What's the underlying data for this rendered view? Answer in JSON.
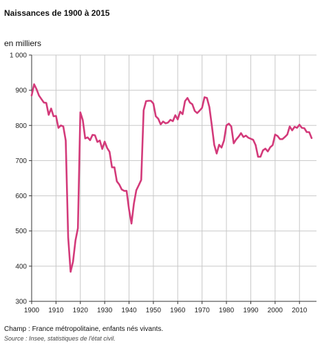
{
  "header": {
    "title": "Naissances de 1900 à 2015",
    "unit": "en milliers"
  },
  "footer": {
    "note": "Champ : France métropolitaine, enfants nés vivants.",
    "source": "Source : Insee, statistiques de l'état civil."
  },
  "colors": {
    "line": "#d33a7a",
    "grid": "#c8c8c8",
    "axis": "#333333"
  },
  "chart_data": {
    "type": "line",
    "title": "Naissances de 1900 à 2015",
    "xlabel": "",
    "ylabel": "en milliers",
    "xlim": [
      1900,
      2017
    ],
    "ylim": [
      300,
      1000
    ],
    "grid": true,
    "x_ticks": [
      1900,
      1910,
      1920,
      1930,
      1940,
      1950,
      1960,
      1970,
      1980,
      1990,
      2000,
      2010
    ],
    "y_ticks": [
      300,
      400,
      500,
      600,
      700,
      800,
      900,
      1000
    ],
    "y_tick_labels": [
      "300",
      "400",
      "500",
      "600",
      "700",
      "800",
      "900",
      "1 000"
    ],
    "series": [
      {
        "x": [
          1900,
          1901,
          1902,
          1903,
          1904,
          1905,
          1906,
          1907,
          1908,
          1909,
          1910,
          1911,
          1912,
          1913,
          1914,
          1915,
          1916,
          1917,
          1918,
          1919,
          1920,
          1921,
          1922,
          1923,
          1924,
          1925,
          1926,
          1927,
          1928,
          1929,
          1930,
          1931,
          1932,
          1933,
          1934,
          1935,
          1936,
          1937,
          1938,
          1939,
          1940,
          1941,
          1942,
          1943,
          1944,
          1945,
          1946,
          1947,
          1948,
          1949,
          1950,
          1951,
          1952,
          1953,
          1954,
          1955,
          1956,
          1957,
          1958,
          1959,
          1960,
          1961,
          1962,
          1963,
          1964,
          1965,
          1966,
          1967,
          1968,
          1969,
          1970,
          1971,
          1972,
          1973,
          1974,
          1975,
          1976,
          1977,
          1978,
          1979,
          1980,
          1981,
          1982,
          1983,
          1984,
          1985,
          1986,
          1987,
          1988,
          1989,
          1990,
          1991,
          1992,
          1993,
          1994,
          1995,
          1996,
          1997,
          1998,
          1999,
          2000,
          2001,
          2002,
          2003,
          2004,
          2005,
          2006,
          2007,
          2008,
          2009,
          2010,
          2011,
          2012,
          2013,
          2014,
          2015
        ],
        "values": [
          885,
          917,
          903,
          885,
          875,
          865,
          864,
          830,
          848,
          826,
          827,
          793,
          800,
          797,
          757,
          482,
          384,
          413,
          473,
          508,
          837,
          815,
          763,
          766,
          758,
          773,
          772,
          753,
          757,
          733,
          754,
          736,
          725,
          681,
          681,
          641,
          632,
          618,
          614,
          614,
          561,
          521,
          578,
          616,
          630,
          645,
          843,
          869,
          870,
          870,
          862,
          826,
          819,
          803,
          811,
          806,
          808,
          816,
          812,
          829,
          817,
          839,
          832,
          869,
          878,
          865,
          860,
          841,
          835,
          842,
          850,
          880,
          878,
          852,
          800,
          745,
          720,
          745,
          737,
          757,
          800,
          805,
          797,
          749,
          760,
          768,
          778,
          767,
          771,
          765,
          762,
          759,
          744,
          711,
          711,
          729,
          734,
          726,
          738,
          744,
          774,
          770,
          761,
          761,
          767,
          774,
          797,
          786,
          796,
          793,
          802,
          793,
          792,
          781,
          781,
          764
        ]
      }
    ]
  }
}
